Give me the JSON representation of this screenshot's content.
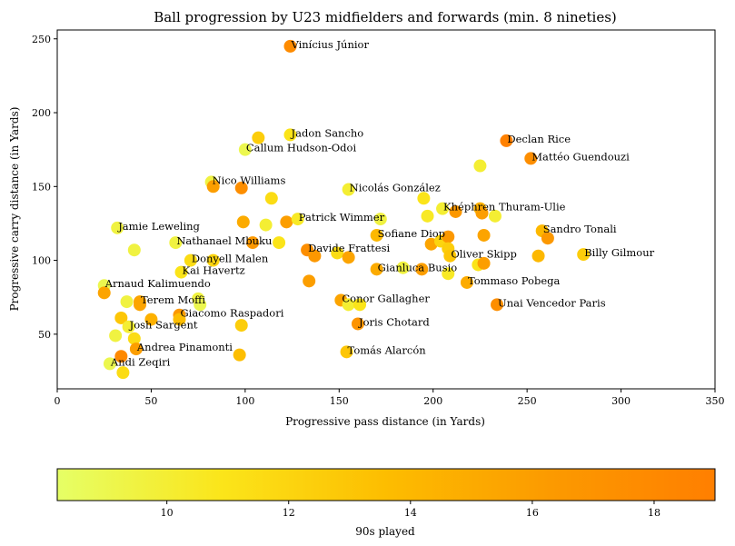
{
  "chart_data": {
    "type": "scatter",
    "title": "Ball progression by U23 midfielders and forwards (min. 8 nineties)",
    "xlabel": "Progressive pass distance (in Yards)",
    "ylabel": "Progressive carry distance (in Yards)",
    "xlim": [
      0,
      350
    ],
    "ylim": [
      13,
      256
    ],
    "xticks": [
      0,
      50,
      100,
      150,
      200,
      250,
      300,
      350
    ],
    "yticks": [
      50,
      100,
      150,
      200,
      250
    ],
    "grid": false,
    "colorbar": {
      "label": "90s played",
      "range": [
        8.2,
        19.0
      ],
      "ticks": [
        10,
        12,
        14,
        16,
        18
      ],
      "colors": [
        "#e6ff66",
        "#fbe51a",
        "#fdbd00",
        "#fc9a00",
        "#ff7f00"
      ]
    },
    "points": [
      {
        "x": 124,
        "y": 245,
        "c": 17.8,
        "label": "Vinícius Júnior"
      },
      {
        "x": 124,
        "y": 185,
        "c": 11.0,
        "label": "Jadon Sancho"
      },
      {
        "x": 107,
        "y": 183,
        "c": 12.5
      },
      {
        "x": 100,
        "y": 175,
        "c": 9.0,
        "label": "Callum Hudson-Odoi"
      },
      {
        "x": 82,
        "y": 153,
        "c": 9.5,
        "label": "Nico Williams"
      },
      {
        "x": 83,
        "y": 150,
        "c": 16.0
      },
      {
        "x": 98,
        "y": 149,
        "c": 17.5
      },
      {
        "x": 114,
        "y": 142,
        "c": 11.5
      },
      {
        "x": 155,
        "y": 148,
        "c": 10.0,
        "label": "Nicolás González"
      },
      {
        "x": 239,
        "y": 181,
        "c": 18.8,
        "label": "Declan Rice"
      },
      {
        "x": 252,
        "y": 169,
        "c": 17.5,
        "label": "Mattéo Guendouzi"
      },
      {
        "x": 225,
        "y": 164,
        "c": 10.0
      },
      {
        "x": 32,
        "y": 122,
        "c": 9.5,
        "label": "Jamie Leweling"
      },
      {
        "x": 41,
        "y": 107,
        "c": 9.5
      },
      {
        "x": 63,
        "y": 112,
        "c": 9.5,
        "label": "Nathanael Mbuku"
      },
      {
        "x": 99,
        "y": 126,
        "c": 15.0
      },
      {
        "x": 111,
        "y": 124,
        "c": 10.0
      },
      {
        "x": 122,
        "y": 126,
        "c": 16.0
      },
      {
        "x": 128,
        "y": 128,
        "c": 10.5,
        "label": "Patrick Wimmer"
      },
      {
        "x": 104,
        "y": 112,
        "c": 16.5
      },
      {
        "x": 118,
        "y": 112,
        "c": 11.0
      },
      {
        "x": 195,
        "y": 142,
        "c": 11.0
      },
      {
        "x": 197,
        "y": 130,
        "c": 10.5
      },
      {
        "x": 205,
        "y": 135,
        "c": 10.0,
        "label": "Khéphren Thuram-Ulie"
      },
      {
        "x": 212,
        "y": 133,
        "c": 16.5
      },
      {
        "x": 225,
        "y": 135,
        "c": 14.5
      },
      {
        "x": 226,
        "y": 132,
        "c": 16.0
      },
      {
        "x": 233,
        "y": 130,
        "c": 10.0
      },
      {
        "x": 172,
        "y": 128,
        "c": 9.5
      },
      {
        "x": 170,
        "y": 117,
        "c": 14.0,
        "label": "Sofiane Diop"
      },
      {
        "x": 133,
        "y": 107,
        "c": 17.5,
        "label": "Davide Frattesi"
      },
      {
        "x": 137,
        "y": 103,
        "c": 16.5
      },
      {
        "x": 149,
        "y": 105,
        "c": 11.5
      },
      {
        "x": 155,
        "y": 102,
        "c": 15.5
      },
      {
        "x": 199,
        "y": 111,
        "c": 15.5
      },
      {
        "x": 204,
        "y": 113,
        "c": 12.0
      },
      {
        "x": 208,
        "y": 116,
        "c": 16.5
      },
      {
        "x": 208,
        "y": 108,
        "c": 12.5
      },
      {
        "x": 209,
        "y": 103,
        "c": 13.0,
        "label": "Oliver Skipp"
      },
      {
        "x": 224,
        "y": 97,
        "c": 11.0
      },
      {
        "x": 227,
        "y": 98,
        "c": 16.0
      },
      {
        "x": 227,
        "y": 117,
        "c": 15.5
      },
      {
        "x": 258,
        "y": 120,
        "c": 14.0,
        "label": "Sandro Tonali"
      },
      {
        "x": 261,
        "y": 115,
        "c": 16.5
      },
      {
        "x": 256,
        "y": 103,
        "c": 14.0
      },
      {
        "x": 280,
        "y": 104,
        "c": 12.5,
        "label": "Billy Gilmour"
      },
      {
        "x": 71,
        "y": 100,
        "c": 11.5,
        "label": "Donyell Malen"
      },
      {
        "x": 83,
        "y": 100,
        "c": 12.0
      },
      {
        "x": 66,
        "y": 92,
        "c": 11.0,
        "label": "Kai Havertz"
      },
      {
        "x": 170,
        "y": 94,
        "c": 15.0,
        "label": "Gianluca Busio"
      },
      {
        "x": 184,
        "y": 95,
        "c": 9.5
      },
      {
        "x": 194,
        "y": 94,
        "c": 16.0
      },
      {
        "x": 208,
        "y": 91,
        "c": 10.5
      },
      {
        "x": 218,
        "y": 85,
        "c": 15.0,
        "label": "Tommaso Pobega"
      },
      {
        "x": 134,
        "y": 86,
        "c": 16.0
      },
      {
        "x": 25,
        "y": 83,
        "c": 9.0,
        "label": "Arnaud Kalimuendo"
      },
      {
        "x": 25,
        "y": 78,
        "c": 15.5
      },
      {
        "x": 37,
        "y": 72,
        "c": 9.5
      },
      {
        "x": 44,
        "y": 72,
        "c": 15.5,
        "label": "Terem Moffi"
      },
      {
        "x": 44,
        "y": 70,
        "c": 15.5
      },
      {
        "x": 75,
        "y": 74,
        "c": 9.5
      },
      {
        "x": 76,
        "y": 70,
        "c": 9.0
      },
      {
        "x": 151,
        "y": 73,
        "c": 15.5,
        "label": "Conor Gallagher"
      },
      {
        "x": 155,
        "y": 70,
        "c": 10.0
      },
      {
        "x": 161,
        "y": 70,
        "c": 11.0
      },
      {
        "x": 234,
        "y": 70,
        "c": 17.5,
        "label": "Unai Vencedor Paris"
      },
      {
        "x": 65,
        "y": 63,
        "c": 16.5,
        "label": "Giacomo Raspadori"
      },
      {
        "x": 65,
        "y": 60,
        "c": 13.5
      },
      {
        "x": 34,
        "y": 61,
        "c": 13.0
      },
      {
        "x": 50,
        "y": 60,
        "c": 14.5
      },
      {
        "x": 38,
        "y": 55,
        "c": 10.0,
        "label": "Josh Sargent"
      },
      {
        "x": 98,
        "y": 56,
        "c": 12.5
      },
      {
        "x": 160,
        "y": 57,
        "c": 17.0,
        "label": "Joris Chotard"
      },
      {
        "x": 31,
        "y": 49,
        "c": 9.5
      },
      {
        "x": 41,
        "y": 47,
        "c": 11.5
      },
      {
        "x": 42,
        "y": 40,
        "c": 16.0,
        "label": "Andrea Pinamonti"
      },
      {
        "x": 34,
        "y": 35,
        "c": 18.0
      },
      {
        "x": 97,
        "y": 36,
        "c": 13.5
      },
      {
        "x": 154,
        "y": 38,
        "c": 13.0,
        "label": "Tomás Alarcón"
      },
      {
        "x": 28,
        "y": 30,
        "c": 9.0,
        "label": "Andi Zeqiri"
      },
      {
        "x": 35,
        "y": 24,
        "c": 11.5
      }
    ]
  }
}
